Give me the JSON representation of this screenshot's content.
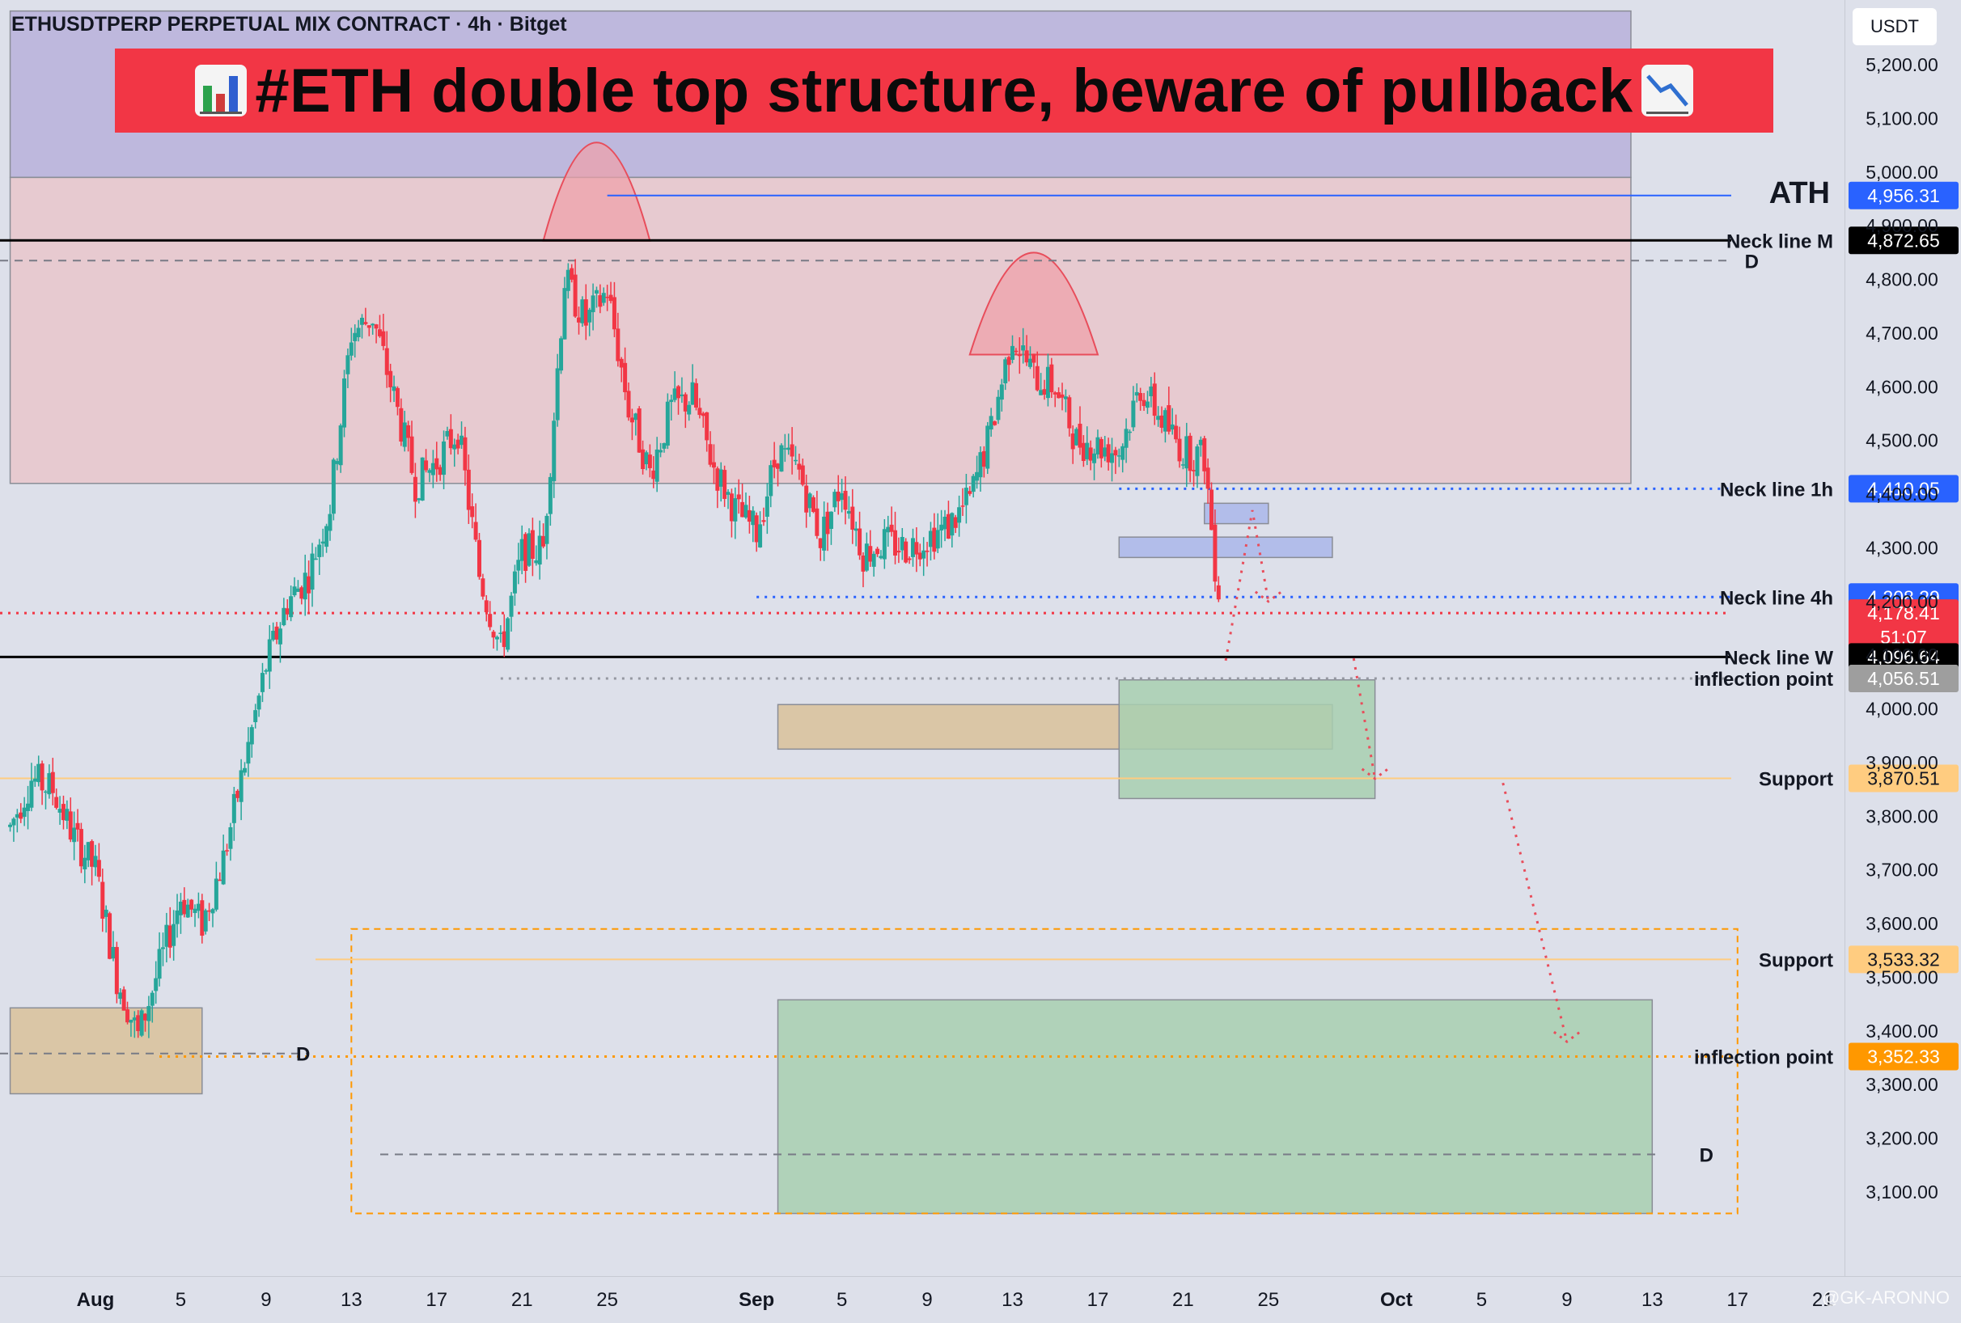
{
  "header": {
    "symbol_title": "ETHUSDTPERP PERPETUAL MIX CONTRACT · 4h · Bitget",
    "banner_text": "#ETH double top structure, beware of pullback",
    "banner_left_icon": "bar-chart-icon",
    "banner_right_icon": "chart-decreasing-icon",
    "banner_color": "#f23645"
  },
  "price_axis": {
    "currency": "USDT"
  },
  "watermark": "@GK-ARONNO",
  "colors": {
    "up": "#26a69a",
    "down": "#f23645",
    "upper_zone": "#b9b0da",
    "resistance_zone": "#e9c6cb",
    "ath_line": "#2962ff",
    "support": "#ffb74d",
    "inflection_low": "#ff9800",
    "demand_zone": "#a8cfb0",
    "supply_box": "#aab6ea",
    "tan_zone": "#d9c19a"
  },
  "chart_data": {
    "type": "candlestick",
    "title": "ETHUSDTPERP PERPETUAL MIX CONTRACT · 4h · Bitget",
    "ylim": [
      3060,
      5260
    ],
    "y_ticks": [
      "5,200.00",
      "5,100.00",
      "5,000.00",
      "4,900.00",
      "4,800.00",
      "4,700.00",
      "4,600.00",
      "4,500.00",
      "4,400.00",
      "4,300.00",
      "4,200.00",
      "4,100.00",
      "4,000.00",
      "3,900.00",
      "3,800.00",
      "3,700.00",
      "3,600.00",
      "3,500.00",
      "3,400.00",
      "3,300.00",
      "3,200.00",
      "3,100.00"
    ],
    "x_ticks": [
      {
        "label": "Aug",
        "date": "2025-08-01",
        "bold": true
      },
      {
        "label": "5",
        "date": "2025-08-05"
      },
      {
        "label": "9",
        "date": "2025-08-09"
      },
      {
        "label": "13",
        "date": "2025-08-13"
      },
      {
        "label": "17",
        "date": "2025-08-17"
      },
      {
        "label": "21",
        "date": "2025-08-21"
      },
      {
        "label": "25",
        "date": "2025-08-25"
      },
      {
        "label": "Sep",
        "date": "2025-09-01",
        "bold": true
      },
      {
        "label": "5",
        "date": "2025-09-05"
      },
      {
        "label": "9",
        "date": "2025-09-09"
      },
      {
        "label": "13",
        "date": "2025-09-13"
      },
      {
        "label": "17",
        "date": "2025-09-17"
      },
      {
        "label": "21",
        "date": "2025-09-21"
      },
      {
        "label": "25",
        "date": "2025-09-25"
      },
      {
        "label": "Oct",
        "date": "2025-10-01",
        "bold": true
      },
      {
        "label": "5",
        "date": "2025-10-05"
      },
      {
        "label": "9",
        "date": "2025-10-09"
      },
      {
        "label": "13",
        "date": "2025-10-13"
      },
      {
        "label": "17",
        "date": "2025-10-17"
      },
      {
        "label": "21",
        "date": "2025-10-21"
      }
    ],
    "price_path": [
      [
        "2025-07-28",
        3780
      ],
      [
        "2025-07-29",
        3870
      ],
      [
        "2025-07-30",
        3850
      ],
      [
        "2025-07-31",
        3760
      ],
      [
        "2025-08-01",
        3700
      ],
      [
        "2025-08-02",
        3500
      ],
      [
        "2025-08-03",
        3390
      ],
      [
        "2025-08-04",
        3520
      ],
      [
        "2025-08-05",
        3650
      ],
      [
        "2025-08-06",
        3600
      ],
      [
        "2025-08-07",
        3720
      ],
      [
        "2025-08-08",
        3900
      ],
      [
        "2025-08-09",
        4080
      ],
      [
        "2025-08-10",
        4200
      ],
      [
        "2025-08-11",
        4250
      ],
      [
        "2025-08-12",
        4380
      ],
      [
        "2025-08-13",
        4700
      ],
      [
        "2025-08-14",
        4730
      ],
      [
        "2025-08-15",
        4580
      ],
      [
        "2025-08-16",
        4420
      ],
      [
        "2025-08-17",
        4460
      ],
      [
        "2025-08-18",
        4520
      ],
      [
        "2025-08-19",
        4250
      ],
      [
        "2025-08-20",
        4110
      ],
      [
        "2025-08-21",
        4290
      ],
      [
        "2025-08-22",
        4300
      ],
      [
        "2025-08-23",
        4800
      ],
      [
        "2025-08-24",
        4720
      ],
      [
        "2025-08-25",
        4780
      ],
      [
        "2025-08-26",
        4560
      ],
      [
        "2025-08-27",
        4440
      ],
      [
        "2025-08-28",
        4560
      ],
      [
        "2025-08-29",
        4580
      ],
      [
        "2025-08-30",
        4450
      ],
      [
        "2025-08-31",
        4370
      ],
      [
        "2025-09-01",
        4330
      ],
      [
        "2025-09-02",
        4480
      ],
      [
        "2025-09-03",
        4440
      ],
      [
        "2025-09-04",
        4320
      ],
      [
        "2025-09-05",
        4420
      ],
      [
        "2025-09-06",
        4290
      ],
      [
        "2025-09-07",
        4310
      ],
      [
        "2025-09-08",
        4300
      ],
      [
        "2025-09-09",
        4320
      ],
      [
        "2025-09-10",
        4340
      ],
      [
        "2025-09-11",
        4390
      ],
      [
        "2025-09-12",
        4520
      ],
      [
        "2025-09-13",
        4700
      ],
      [
        "2025-09-14",
        4620
      ],
      [
        "2025-09-15",
        4600
      ],
      [
        "2025-09-16",
        4500
      ],
      [
        "2025-09-17",
        4490
      ],
      [
        "2025-09-18",
        4480
      ],
      [
        "2025-09-19",
        4600
      ],
      [
        "2025-09-20",
        4540
      ],
      [
        "2025-09-21",
        4480
      ],
      [
        "2025-09-22",
        4470
      ],
      [
        "2025-09-22T12:00",
        4270
      ],
      [
        "2025-09-22T20:00",
        4178.41
      ]
    ],
    "levels": [
      {
        "label": "ATH",
        "price": 4956.31,
        "price_label": "4,956.31",
        "style": "solid",
        "color": "#2962ff",
        "tag_color": "#2962ff"
      },
      {
        "label": "Neck line M",
        "price": 4872.65,
        "price_label": "4,872.65",
        "style": "solid",
        "color": "#000000",
        "tag_color": "#000000"
      },
      {
        "label": "D",
        "price": 4835,
        "style": "dashed",
        "color": "#787b86"
      },
      {
        "label": "Neck line 1h",
        "price": 4410.05,
        "price_label": "4,410.05",
        "style": "dotted",
        "color": "#2962ff",
        "tag_color": "#2962ff"
      },
      {
        "label": "Neck line 4h",
        "price": 4208.29,
        "price_label": "4,208.29",
        "style": "dotted",
        "color": "#2962ff",
        "tag_color": "#2962ff"
      },
      {
        "label": "",
        "price": 4178.41,
        "price_label": "4,178.41",
        "countdown": "51:07",
        "style": "dotted",
        "color": "#f23645",
        "tag_color": "#f23645"
      },
      {
        "label": "Neck line W",
        "price": 4096.64,
        "price_label": "4,096.64",
        "style": "solid",
        "color": "#000000",
        "tag_color": "#000000"
      },
      {
        "label": "inflection point",
        "price": 4056.51,
        "price_label": "4,056.51",
        "style": "dotted",
        "color": "#9598a1",
        "tag_color": "#9e9e9e"
      },
      {
        "label": "Support",
        "price": 3870.51,
        "price_label": "3,870.51",
        "style": "solid",
        "color": "#ffcc80",
        "tag_color": "#ffcc80"
      },
      {
        "label": "Support",
        "price": 3533.32,
        "price_label": "3,533.32",
        "style": "solid",
        "color": "#ffcc80",
        "tag_color": "#ffcc80"
      },
      {
        "label": "inflection point",
        "price": 3352.33,
        "price_label": "3,352.33",
        "style": "dotted",
        "color": "#ff9800",
        "tag_color": "#ff9800"
      },
      {
        "label": "D",
        "price": 3170,
        "style": "dashed",
        "color": "#787b86"
      },
      {
        "label": "D",
        "price": 3358,
        "style": "dashed",
        "color": "#787b86"
      }
    ],
    "zones": [
      {
        "name": "upper-zone",
        "from": "2025-07-28",
        "to": "2025-10-12",
        "price_low": 4990,
        "price_high": 5300,
        "color": "#b9b0da"
      },
      {
        "name": "resistance-zone",
        "from": "2025-07-28",
        "to": "2025-10-12",
        "price_low": 4420,
        "price_high": 4990,
        "color": "#e9c6cb"
      },
      {
        "name": "supply-box-1",
        "from": "2025-09-22",
        "to": "2025-09-25",
        "price_low": 4345,
        "price_high": 4383,
        "color": "#aab6ea"
      },
      {
        "name": "supply-box-2",
        "from": "2025-09-18",
        "to": "2025-09-28",
        "price_low": 4282,
        "price_high": 4320,
        "color": "#aab6ea"
      },
      {
        "name": "tan-zone-mid",
        "from": "2025-09-02",
        "to": "2025-09-28",
        "price_low": 3925,
        "price_high": 4008,
        "color": "#d9c19a"
      },
      {
        "name": "demand-zone-mid",
        "from": "2025-09-18",
        "to": "2025-09-30",
        "price_low": 3833,
        "price_high": 4054,
        "color": "#a8cfb0"
      },
      {
        "name": "tan-zone-low",
        "from": "2025-07-28",
        "to": "2025-08-06",
        "price_low": 3283,
        "price_high": 3443,
        "color": "#d9c19a"
      },
      {
        "name": "demand-zone-low",
        "from": "2025-09-02",
        "to": "2025-10-13",
        "price_low": 3060,
        "price_high": 3458,
        "color": "#a8cfb0"
      },
      {
        "name": "target-frame",
        "from": "2025-08-13",
        "to": "2025-10-17",
        "price_low": 3060,
        "price_high": 3590,
        "color": "#ff9800",
        "outline": true
      }
    ],
    "arcs": [
      {
        "name": "left-top-arc",
        "from": "2025-08-22",
        "to": "2025-08-27",
        "base": 4872,
        "peak": 5055
      },
      {
        "name": "right-top-arc",
        "from": "2025-09-11",
        "to": "2025-09-17",
        "base": 4660,
        "peak": 4850
      }
    ],
    "projection_paths": [
      [
        [
          "2025-09-23",
          4090
        ],
        [
          "2025-09-24T06:00",
          4370
        ],
        [
          "2025-09-25",
          4200
        ]
      ],
      [
        [
          "2025-09-29",
          4094
        ],
        [
          "2025-09-30",
          3870
        ]
      ],
      [
        [
          "2025-10-06",
          3862
        ],
        [
          "2025-10-09",
          3380
        ]
      ]
    ]
  }
}
